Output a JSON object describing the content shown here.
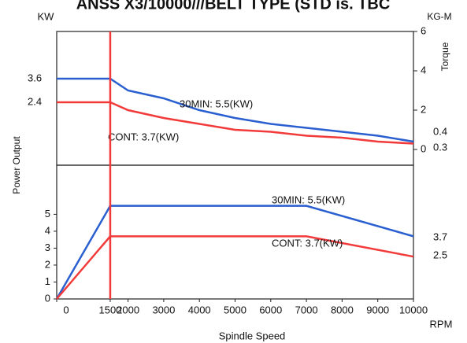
{
  "chart_data": [
    {
      "type": "line",
      "title": "ANSS X3/10000///BELT TYPE (STD is. TBC",
      "y_unit": "KW",
      "y2label": "Torque",
      "y2_unit": "KG-M",
      "x": [
        0,
        1500,
        2000,
        3000,
        4000,
        5000,
        6000,
        7000,
        8000,
        9000,
        10000
      ],
      "xlim": [
        0,
        10000
      ],
      "y2lim": [
        -0.8,
        6
      ],
      "y2ticks": [
        0,
        2,
        4,
        6
      ],
      "series": [
        {
          "name": "30MIN: 5.5(KW)",
          "color": "#2a5fd0",
          "axis": "y2",
          "values": [
            3.6,
            3.6,
            3.0,
            2.6,
            2.0,
            1.6,
            1.3,
            1.1,
            0.9,
            0.7,
            0.4
          ]
        },
        {
          "name": "CONT: 3.7(KW)",
          "color": "#f23a3a",
          "axis": "y2",
          "values": [
            2.4,
            2.4,
            2.0,
            1.6,
            1.3,
            1.0,
            0.9,
            0.7,
            0.6,
            0.4,
            0.3
          ]
        }
      ]
    },
    {
      "type": "line",
      "ylabel": "Power Output",
      "xlabel": "Spindle Speed",
      "x_unit": "RPM",
      "x": [
        0,
        1500,
        7000,
        10000
      ],
      "xlim": [
        0,
        10000
      ],
      "xticks": [
        0,
        1500,
        2000,
        3000,
        4000,
        5000,
        6000,
        7000,
        8000,
        9000,
        10000
      ],
      "ylim": [
        0,
        7.9
      ],
      "yticks": [
        0,
        1,
        2,
        3,
        4,
        5
      ],
      "vline": {
        "value": 1500,
        "color": "#f23a3a"
      },
      "series": [
        {
          "name": "30MIN: 5.5(KW)",
          "color": "#2a5fd0",
          "values": [
            0,
            5.5,
            5.5,
            3.7
          ]
        },
        {
          "name": "CONT: 3.7(KW)",
          "color": "#f23a3a",
          "values": [
            0,
            3.7,
            3.7,
            2.5
          ]
        }
      ]
    }
  ]
}
